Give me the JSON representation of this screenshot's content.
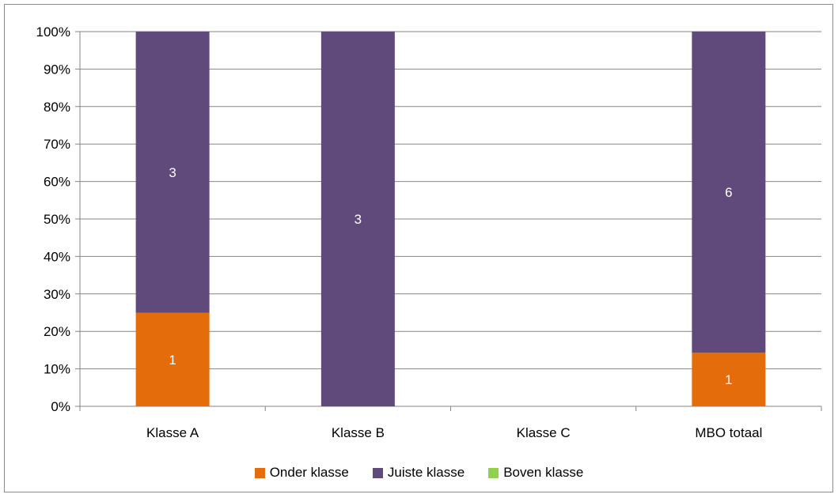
{
  "chart_data": {
    "type": "bar",
    "stacked": true,
    "percent": true,
    "categories": [
      "Klasse A",
      "Klasse B",
      "Klasse C",
      "MBO totaal"
    ],
    "series": [
      {
        "name": "Onder klasse",
        "color": "#E46C0A",
        "values": [
          1,
          0,
          0,
          1
        ]
      },
      {
        "name": "Juiste klasse",
        "color": "#604A7B",
        "values": [
          3,
          3,
          0,
          6
        ]
      },
      {
        "name": "Boven klasse",
        "color": "#92D050",
        "values": [
          0,
          0,
          0,
          0
        ]
      }
    ],
    "y_ticks": [
      "0%",
      "10%",
      "20%",
      "30%",
      "40%",
      "50%",
      "60%",
      "70%",
      "80%",
      "90%",
      "100%"
    ],
    "ylim": [
      0,
      100
    ],
    "grid": true,
    "legend_position": "bottom"
  }
}
